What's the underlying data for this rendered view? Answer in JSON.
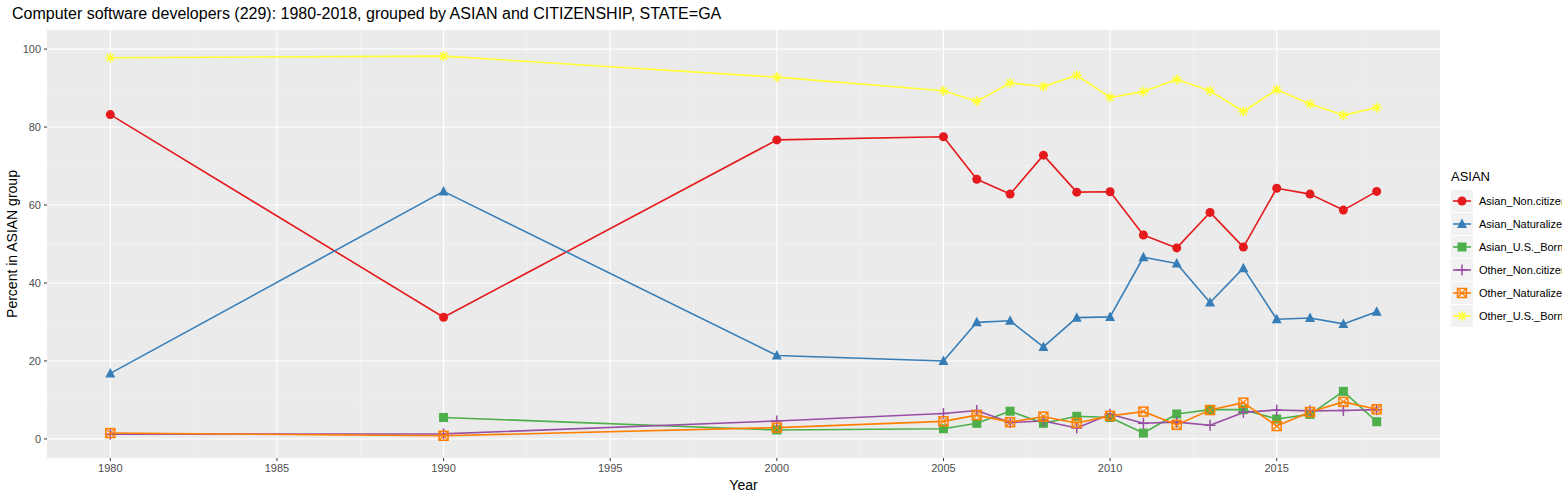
{
  "chart_data": {
    "type": "line",
    "title": "Computer software developers (229): 1980-2018, grouped by ASIAN and CITIZENSHIP, STATE=GA",
    "x_label": "Year",
    "y_label": "Percent in ASIAN group",
    "legend_title": "ASIAN",
    "legend": "right",
    "grid": true,
    "x": [
      1980,
      1990,
      2000,
      2005,
      2006,
      2007,
      2008,
      2009,
      2010,
      2011,
      2012,
      2013,
      2014,
      2015,
      2016,
      2017,
      2018
    ],
    "xlim": [
      1978.1,
      2019.9
    ],
    "xticks": [
      1980,
      1985,
      1990,
      1995,
      2000,
      2005,
      2010,
      2015
    ],
    "ylim": [
      -4.9,
      104.9
    ],
    "yticks": [
      0,
      20,
      40,
      60,
      80,
      100
    ],
    "series": [
      {
        "name": "Asian_Non.citizen",
        "color": "#e41a1c",
        "marker": "circle",
        "values": [
          83.2,
          31.2,
          76.7,
          77.5,
          66.6,
          62.8,
          72.8,
          63.3,
          63.4,
          52.3,
          49.0,
          58.1,
          49.2,
          64.3,
          62.8,
          58.7,
          63.5
        ]
      },
      {
        "name": "Asian_Naturalized",
        "color": "#377eb8",
        "marker": "triangle",
        "values": [
          16.8,
          63.5,
          21.4,
          20.0,
          29.9,
          30.3,
          23.6,
          31.1,
          31.3,
          46.6,
          45.0,
          35.0,
          43.8,
          30.7,
          31.0,
          29.5,
          32.6
        ]
      },
      {
        "name": "Asian_U.S._Born",
        "color": "#4daf4a",
        "marker": "square",
        "values": [
          null,
          5.5,
          2.3,
          2.6,
          4.0,
          7.1,
          4.0,
          5.8,
          5.5,
          1.5,
          6.4,
          7.5,
          7.5,
          5.1,
          6.3,
          12.2,
          4.4
        ]
      },
      {
        "name": "Other_Non.citizen",
        "color": "#984ea3",
        "marker": "plus",
        "values": [
          1.2,
          1.3,
          4.6,
          6.5,
          7.3,
          4.2,
          4.6,
          2.8,
          6.3,
          4.0,
          4.3,
          3.5,
          6.8,
          7.4,
          7.2,
          7.3,
          7.5
        ]
      },
      {
        "name": "Other_Naturalized",
        "color": "#ff7f00",
        "marker": "square-cross",
        "values": [
          1.5,
          0.8,
          2.9,
          4.5,
          6.1,
          4.3,
          5.7,
          4.1,
          5.9,
          7.0,
          3.6,
          7.4,
          9.3,
          3.3,
          6.9,
          9.5,
          7.6
        ]
      },
      {
        "name": "Other_U.S._Born",
        "color": "#ffff33",
        "marker": "asterisk",
        "values": [
          97.8,
          98.2,
          92.8,
          89.3,
          86.6,
          91.3,
          90.4,
          93.3,
          87.6,
          89.1,
          92.2,
          89.3,
          84.0,
          89.6,
          85.9,
          83.0,
          85.0
        ]
      }
    ]
  }
}
